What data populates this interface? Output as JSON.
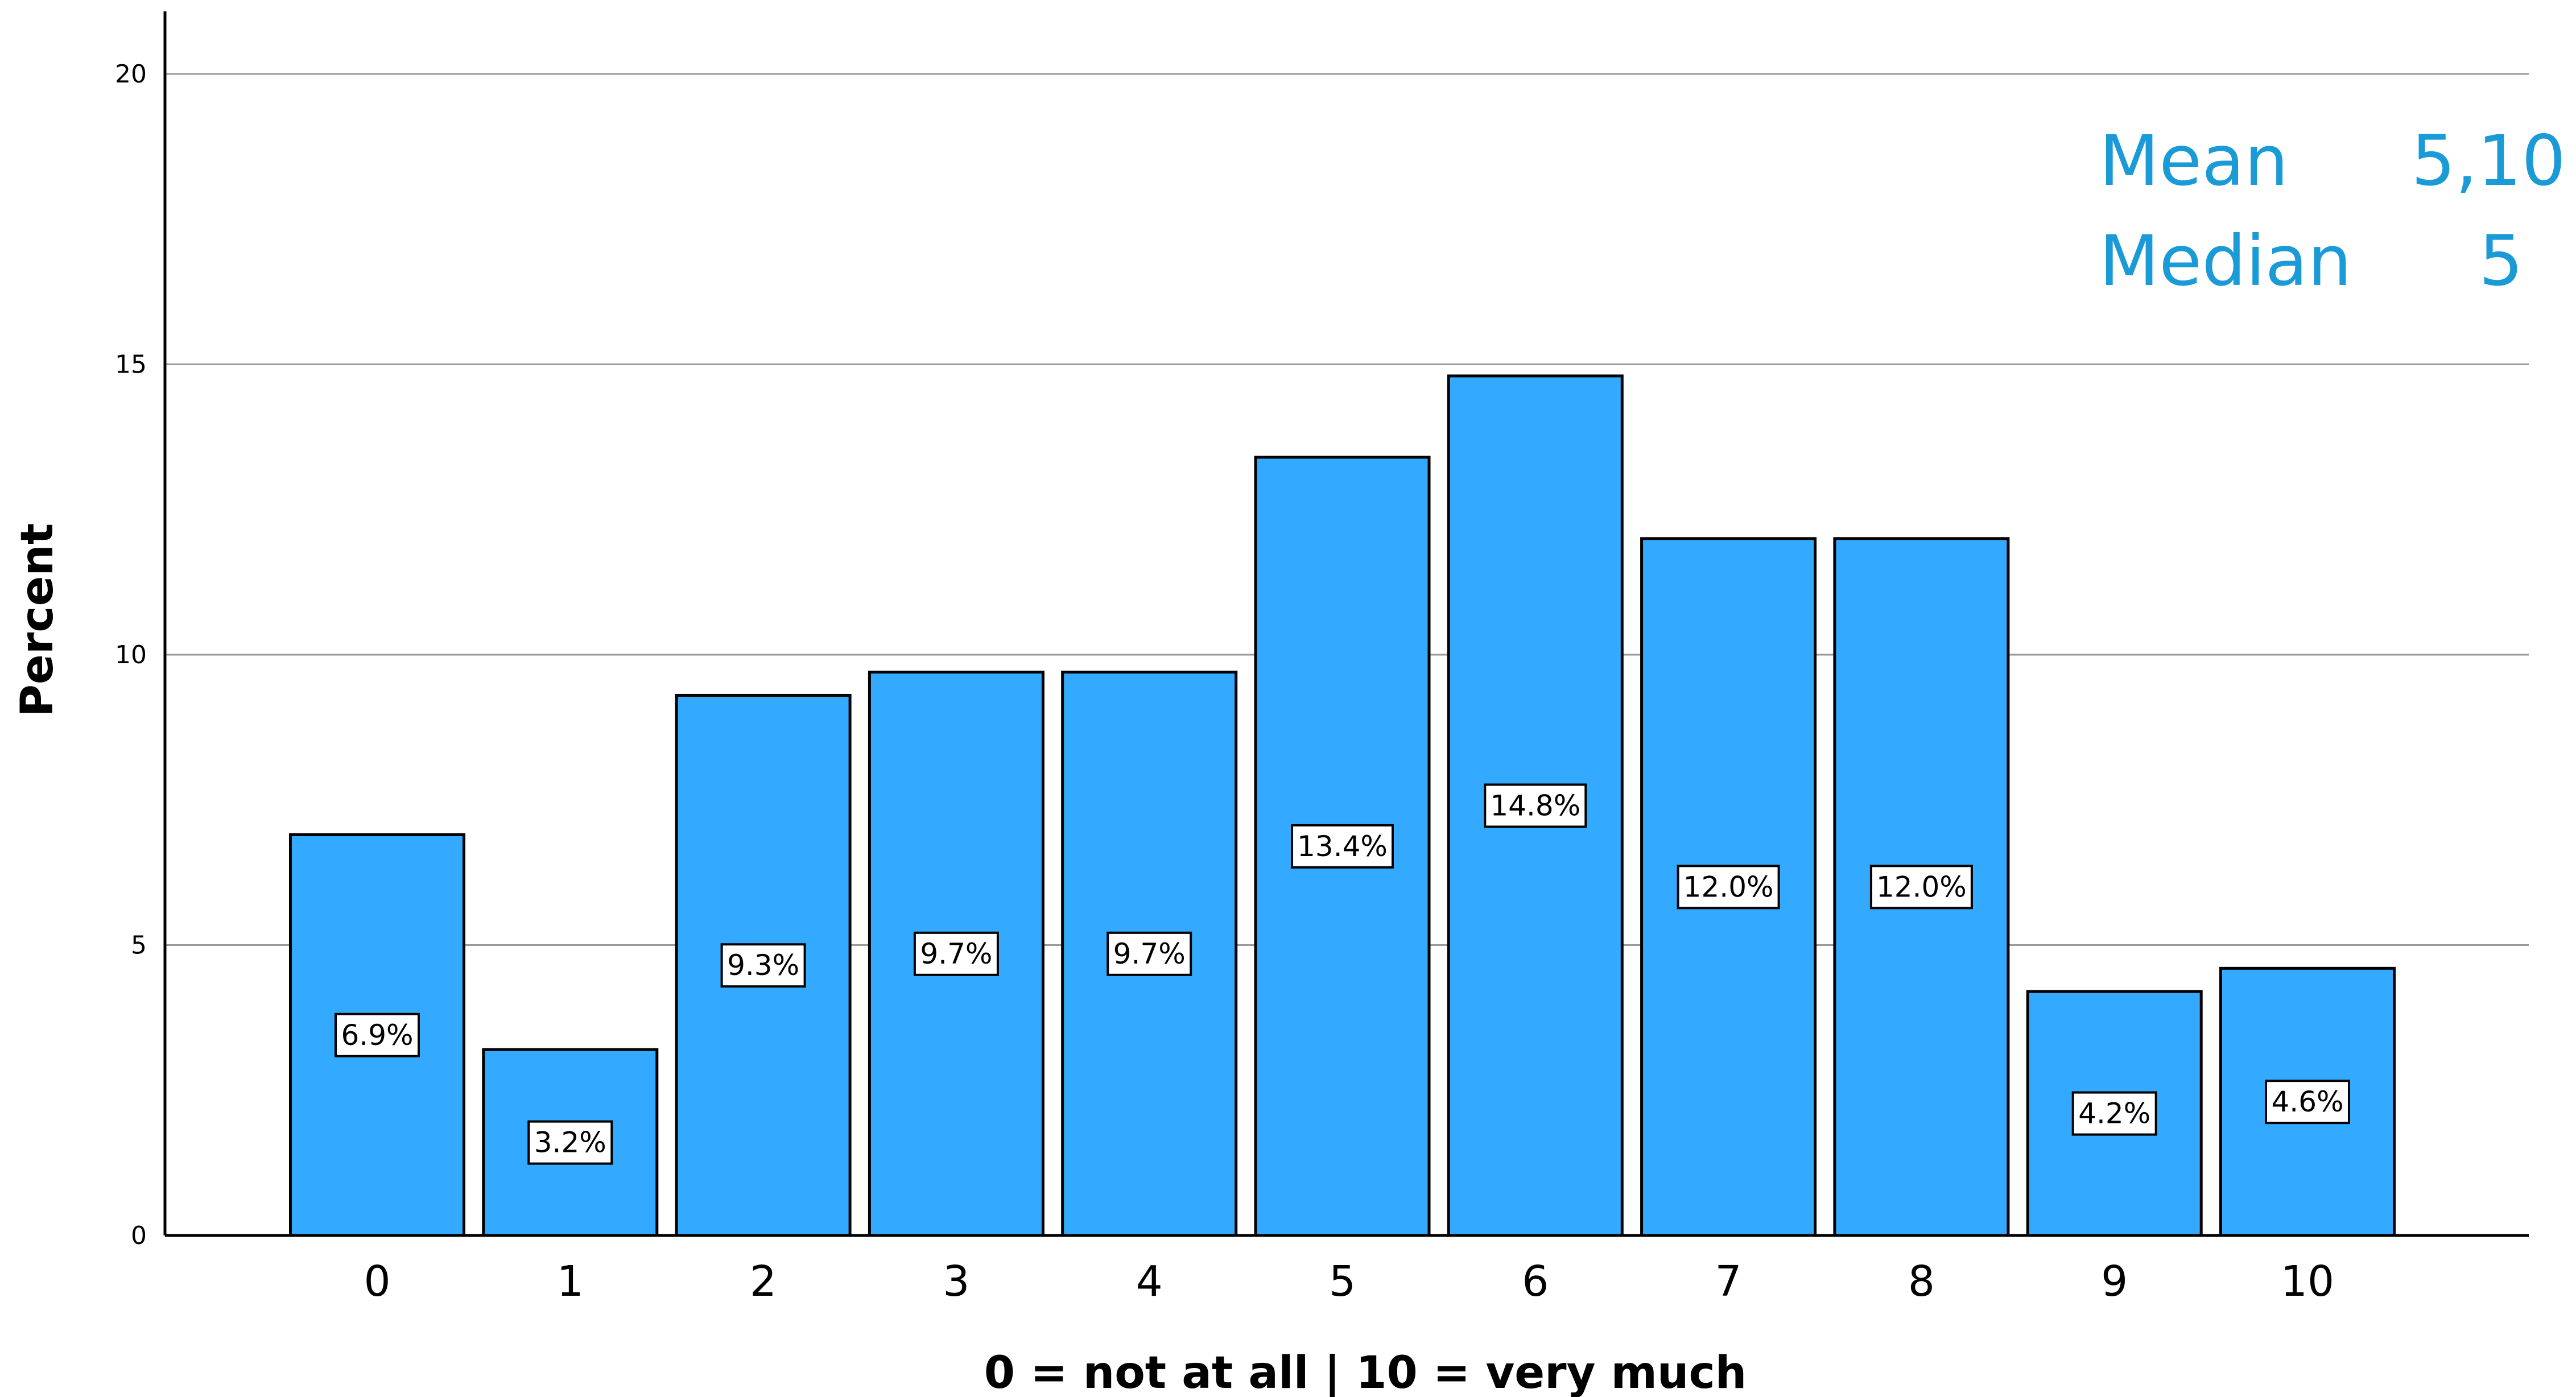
{
  "chart_data": {
    "type": "bar",
    "categories": [
      "0",
      "1",
      "2",
      "3",
      "4",
      "5",
      "6",
      "7",
      "8",
      "9",
      "10"
    ],
    "values": [
      6.9,
      3.2,
      9.3,
      9.7,
      9.7,
      13.4,
      14.8,
      12.0,
      12.0,
      4.2,
      4.6
    ],
    "data_labels": [
      "6.9%",
      "3.2%",
      "9.3%",
      "9.7%",
      "9.7%",
      "13.4%",
      "14.8%",
      "12.0%",
      "12.0%",
      "4.2%",
      "4.6%"
    ],
    "xlabel": "0 = not at all | 10 = very much",
    "ylabel": "Percent",
    "ylim": [
      0,
      20
    ],
    "yticks": [
      "0",
      "5",
      "10",
      "15",
      "20"
    ],
    "grid": true,
    "bar_color": "#33aaff",
    "stats": {
      "mean_label": "Mean",
      "mean_value": "5,10",
      "median_label": "Median",
      "median_value": "5",
      "color": "#1a9ad6"
    }
  }
}
